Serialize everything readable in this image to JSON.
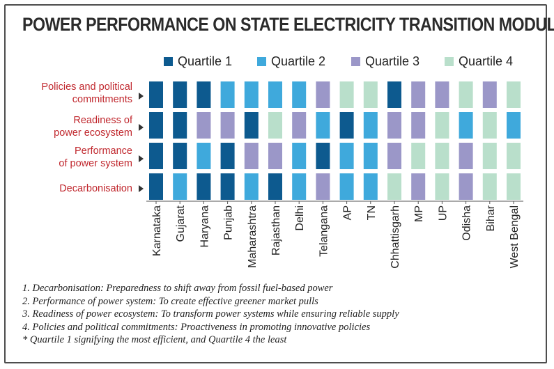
{
  "chart_data": {
    "type": "heatmap",
    "title": "POWER PERFORMANCE ON STATE ELECTRICITY TRANSITION MODULE",
    "legend": [
      {
        "label": "Quartile 1",
        "quartile": 1,
        "color": "#0d5a8f"
      },
      {
        "label": "Quartile 2",
        "quartile": 2,
        "color": "#3fa9dc"
      },
      {
        "label": "Quartile 3",
        "quartile": 3,
        "color": "#9b97c8"
      },
      {
        "label": "Quartile 4",
        "quartile": 4,
        "color": "#b9dfcb"
      }
    ],
    "rows": [
      {
        "label": "Policies and political\ncommitments"
      },
      {
        "label": "Readiness of\npower ecosystem"
      },
      {
        "label": "Performance\nof power system"
      },
      {
        "label": "Decarbonisation"
      }
    ],
    "columns": [
      "Karnataka",
      "Gujarat",
      "Haryana",
      "Punjab",
      "Maharashtra",
      "Rajasthan",
      "Delhi",
      "Telangana",
      "AP",
      "TN",
      "Chhattisgarh",
      "MP",
      "UP",
      "Odisha",
      "Bihar",
      "West Bengal"
    ],
    "values": [
      [
        1,
        1,
        1,
        2,
        2,
        2,
        2,
        3,
        4,
        4,
        1,
        3,
        3,
        4,
        3,
        4
      ],
      [
        1,
        1,
        3,
        3,
        1,
        4,
        3,
        2,
        1,
        2,
        3,
        3,
        4,
        2,
        4,
        2
      ],
      [
        1,
        1,
        2,
        1,
        3,
        3,
        2,
        1,
        2,
        2,
        3,
        4,
        4,
        3,
        4,
        4
      ],
      [
        1,
        2,
        1,
        1,
        2,
        1,
        2,
        3,
        2,
        2,
        4,
        3,
        4,
        3,
        4,
        4
      ]
    ]
  },
  "footnotes": [
    "1. Decarbonisation: Preparedness to shift away from fossil fuel-based power",
    "2. Performance of power system: To create effective greener market pulls",
    "3. Readiness of power ecosystem: To transform power systems while ensuring reliable supply",
    "4. Policies and political commitments: Proactiveness in promoting innovative policies",
    "* Quartile 1 signifying the most efficient, and Quartile 4 the least"
  ]
}
